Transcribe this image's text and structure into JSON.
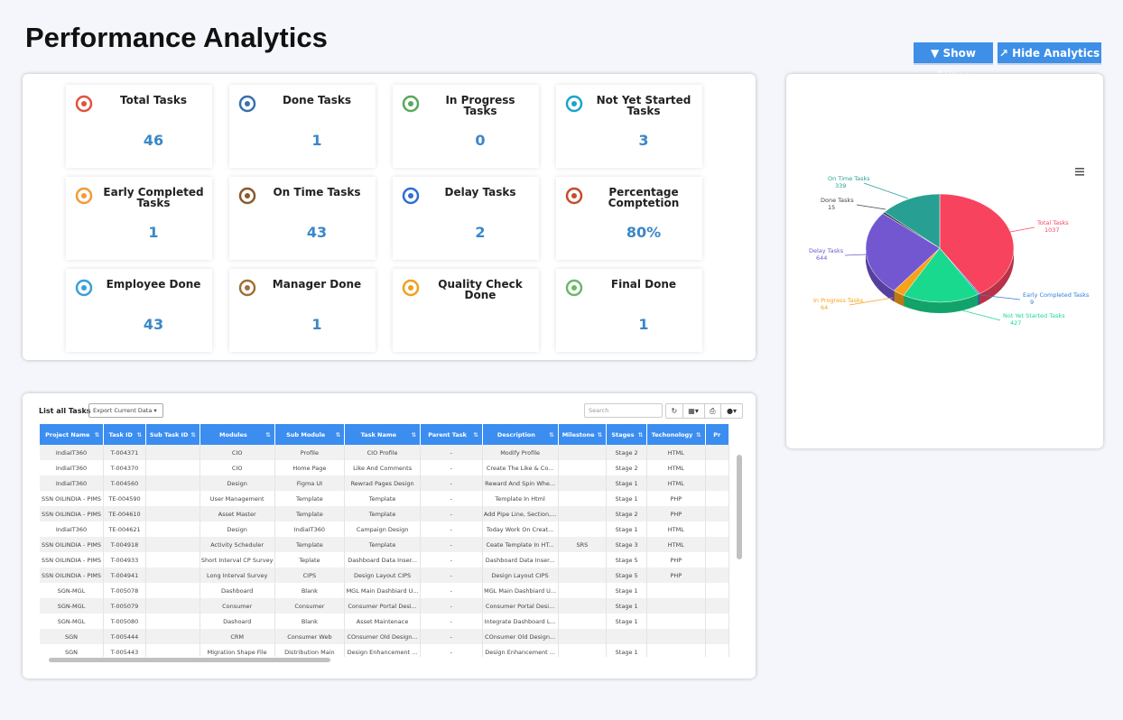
{
  "header": {
    "title": "Performance Analytics",
    "buttons": [
      "Show Filter",
      "Hide Analytics"
    ]
  },
  "cards": [
    {
      "title": "Total Tasks",
      "value": "46"
    },
    {
      "title": "Done Tasks",
      "value": "1"
    },
    {
      "title": "In Progress Tasks",
      "value": "0"
    },
    {
      "title": "Not Yet Started Tasks",
      "value": "3"
    },
    {
      "title": "Early Completed Tasks",
      "value": "1"
    },
    {
      "title": "On Time Tasks",
      "value": "43"
    },
    {
      "title": "Delay Tasks",
      "value": "2"
    },
    {
      "title": "Percentage Comptetion",
      "value": "80%"
    },
    {
      "title": "Employee Done",
      "value": "43"
    },
    {
      "title": "Manager Done",
      "value": "1"
    },
    {
      "title": "Quality Check Done",
      "value": null
    },
    {
      "title": "Final Done",
      "value": "1"
    }
  ],
  "chart_data": {
    "type": "pie",
    "categories": [
      "Total Tasks",
      "Early Completed Tasks",
      "Not Yet Started Tasks",
      "In Progress Tasks",
      "Delay Tasks",
      "Done Tasks",
      "On Time Tasks"
    ],
    "values": [
      1037,
      9,
      427,
      64,
      644,
      15,
      339
    ],
    "colors": [
      "#f7435e",
      "#2f7ed8",
      "#19d98f",
      "#f7a21b",
      "#7257d1",
      "#434348",
      "#27a093"
    ]
  },
  "table": {
    "title": "List all Tasks",
    "export": "Export Current Data",
    "search": "Search",
    "columns": [
      "Project Name",
      "Task ID",
      "Sub Task ID",
      "Modules",
      "Sub Module",
      "Task Name",
      "Parent Task",
      "Description",
      "Milestone",
      "Stages",
      "Techonology",
      "Pr"
    ],
    "rows": [
      [
        "IndiaIT360",
        "T-004371",
        null,
        "CIO",
        "Profile",
        "CIO Profile",
        "-",
        "Modify Profile",
        null,
        "Stage 2",
        "HTML"
      ],
      [
        "IndiaIT360",
        "T-004370",
        null,
        "CIO",
        "Home Page",
        "Like And Comments",
        "-",
        "Create The Like & Co...",
        null,
        "Stage 2",
        "HTML"
      ],
      [
        "IndiaIT360",
        "T-004560",
        null,
        "Design",
        "Figma UI",
        "Rewrad Pages Design",
        "-",
        "Reward And Spin Whe...",
        null,
        "Stage 1",
        "HTML"
      ],
      [
        "SSN OILINDIA - PIMS",
        "TE-004590",
        null,
        "User Management",
        "Template",
        "Template",
        "-",
        "Template In Html",
        null,
        "Stage 1",
        "PHP"
      ],
      [
        "SSN OILINDIA - PIMS",
        "TE-004610",
        null,
        "Asset Master",
        "Template",
        "Template",
        "-",
        "Add Pipe Line, Section,...",
        null,
        "Stage 2",
        "PHP"
      ],
      [
        "IndiaIT360",
        "TE-004621",
        null,
        "Design",
        "IndiaIT360",
        "Campaign Design",
        "-",
        "Today Work On Creat...",
        null,
        "Stage 1",
        "HTML"
      ],
      [
        "SSN OILINDIA - PIMS",
        "T-004918",
        null,
        "Activity Scheduler",
        "Template",
        "Template",
        "-",
        "Ceate Template In HT...",
        "SRS",
        "Stage 3",
        "HTML"
      ],
      [
        "SSN OILINDIA - PIMS",
        "T-004933",
        null,
        "Short Interval CP Survey",
        "Teplate",
        "Dashboard Data Inser...",
        "-",
        "Dashboard Data Inser...",
        null,
        "Stage 5",
        "PHP"
      ],
      [
        "SSN OILINDIA - PIMS",
        "T-004941",
        null,
        "Long Interval Survey",
        "CIPS",
        "Design Layout CIPS",
        "-",
        "Design Layout CIPS",
        null,
        "Stage 5",
        "PHP"
      ],
      [
        "SGN-MGL",
        "T-005078",
        null,
        "Dashboard",
        "Blank",
        "MGL Main Dashbiard U...",
        "-",
        "MGL Main Dashbiard U...",
        null,
        "Stage 1",
        null
      ],
      [
        "SGN-MGL",
        "T-005079",
        null,
        "Consumer",
        "Consumer",
        "Consumer Portal Desi...",
        "-",
        "Consumer Portal Desi...",
        null,
        "Stage 1",
        null
      ],
      [
        "SGN-MGL",
        "T-005080",
        null,
        "Dashoard",
        "Blank",
        "Asset Maintenace",
        "-",
        "Integrate Dashboard L...",
        null,
        "Stage 1",
        null
      ],
      [
        "SGN",
        "T-005444",
        null,
        "CRM",
        "Consumer Web",
        "COnsumer Old Design...",
        "-",
        "COnsumer Old Design...",
        null,
        null,
        null
      ],
      [
        "SGN",
        "T-005443",
        null,
        "Migration Shape File",
        "Distribution Main",
        "Design Enhancement ...",
        "-",
        "Design Enhancement ...",
        null,
        "Stage 1",
        null
      ]
    ]
  }
}
